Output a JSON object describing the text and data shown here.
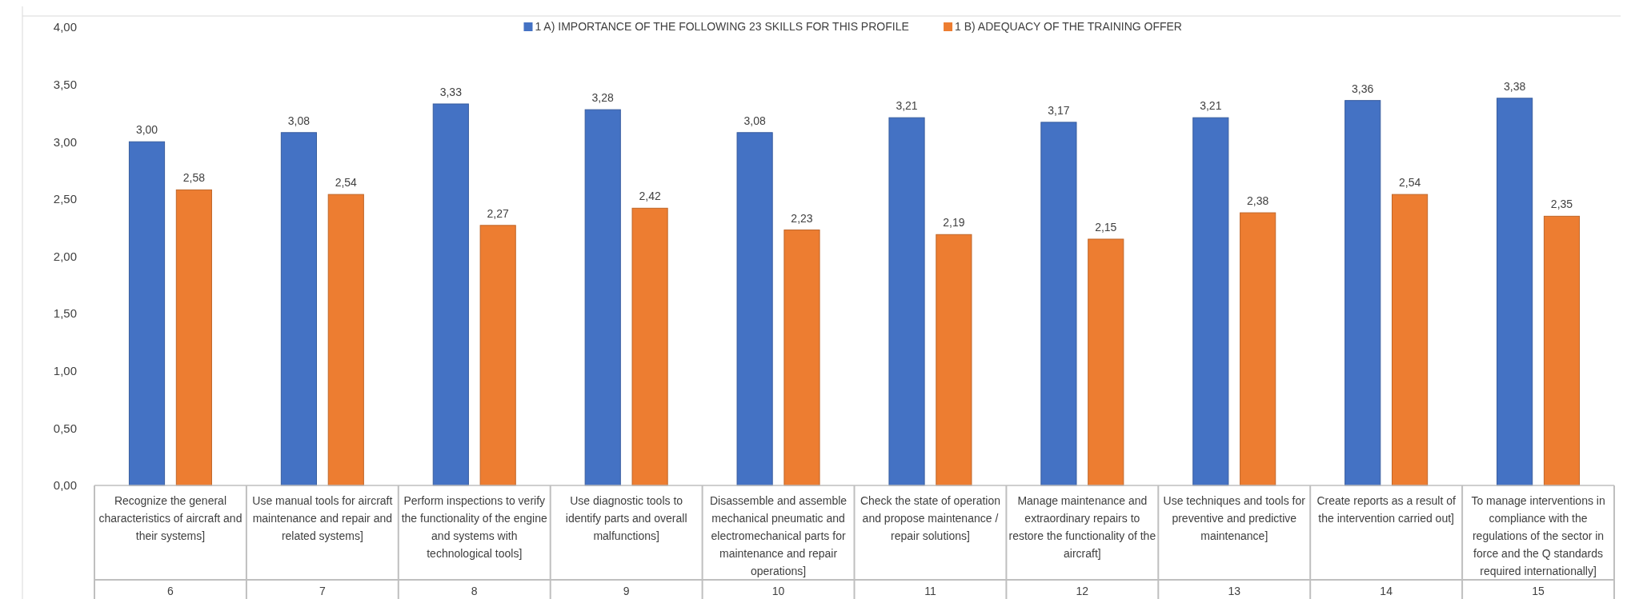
{
  "chart_data": {
    "type": "bar",
    "categories": [
      "Recognize the general characteristics of aircraft and their systems]\n6",
      "Use manual tools for aircraft maintenance and repair and related systems]\n7",
      "Perform inspections to verify the functionality of the engine and systems with technological tools]\n8",
      "Use diagnostic tools to identify parts and overall malfunctions]\n9",
      "Disassemble and assemble mechanical pneumatic and electromechanical parts for maintenance and repair operations]\n10",
      "Check the state of operation and propose maintenance / repair solutions]\n11",
      "Manage maintenance and extraordinary repairs to restore the functionality of the aircraft]\n12",
      "Use techniques and tools for preventive and predictive maintenance]\n13",
      "Create reports as a result of the intervention carried out]\n14",
      "To manage interventions in compliance with the regulations of the sector in force and the Q standards required internationally]\n15"
    ],
    "series": [
      {
        "name": "1 A) IMPORTANCE OF THE FOLLOWING 23 SKILLS FOR THIS PROFILE",
        "color": "#4472c4",
        "values": [
          3.0,
          3.08,
          3.33,
          3.28,
          3.08,
          3.21,
          3.17,
          3.21,
          3.36,
          3.38
        ],
        "value_labels": [
          "3,00",
          "3,08",
          "3,33",
          "3,28",
          "3,08",
          "3,21",
          "3,17",
          "3,21",
          "3,36",
          "3,38"
        ]
      },
      {
        "name": "1 B) ADEQUACY OF THE TRAINING OFFER",
        "color": "#ed7d31",
        "values": [
          2.58,
          2.54,
          2.27,
          2.42,
          2.23,
          2.19,
          2.15,
          2.38,
          2.54,
          2.35
        ],
        "value_labels": [
          "2,58",
          "2,54",
          "2,27",
          "2,42",
          "2,23",
          "2,19",
          "2,15",
          "2,38",
          "2,54",
          "2,35"
        ]
      }
    ],
    "ylim": [
      0,
      4
    ],
    "yticks": [
      {
        "value": 0,
        "label": "0,00"
      },
      {
        "value": 0.5,
        "label": "0,50"
      },
      {
        "value": 1,
        "label": "1,00"
      },
      {
        "value": 1.5,
        "label": "1,50"
      },
      {
        "value": 2,
        "label": "2,00"
      },
      {
        "value": 2.5,
        "label": "2,50"
      },
      {
        "value": 3,
        "label": "3,00"
      },
      {
        "value": 3.5,
        "label": "3,50"
      },
      {
        "value": 4,
        "label": "4,00"
      }
    ],
    "legend": "top"
  }
}
